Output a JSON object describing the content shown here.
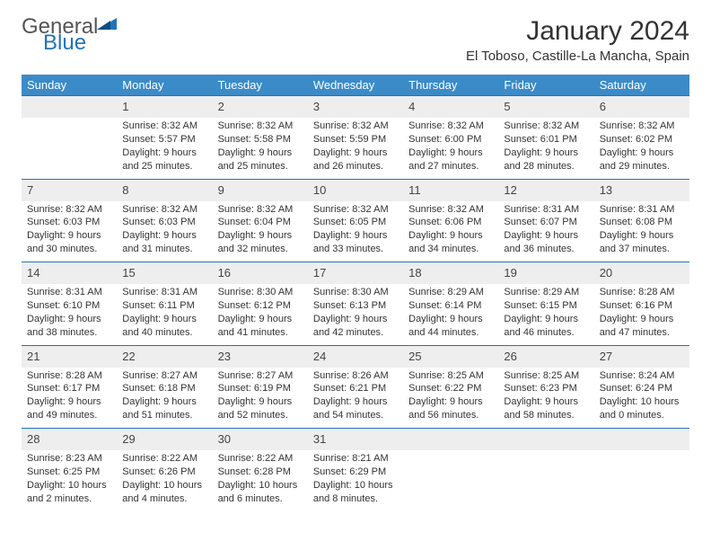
{
  "logo": {
    "general": "General",
    "blue": "Blue"
  },
  "title": "January 2024",
  "location": "El Toboso, Castille-La Mancha, Spain",
  "colors": {
    "header_bg": "#3b8bc8",
    "header_text": "#ffffff",
    "daynum_bg": "#eeeeee",
    "border": "#2074b8",
    "logo_gray": "#555555",
    "logo_blue": "#2074b8",
    "page_bg": "#ffffff",
    "text": "#333333"
  },
  "weekdays": [
    "Sunday",
    "Monday",
    "Tuesday",
    "Wednesday",
    "Thursday",
    "Friday",
    "Saturday"
  ],
  "weeks": [
    [
      {
        "n": "",
        "sr": "",
        "ss": "",
        "d1": "",
        "d2": ""
      },
      {
        "n": "1",
        "sr": "Sunrise: 8:32 AM",
        "ss": "Sunset: 5:57 PM",
        "d1": "Daylight: 9 hours",
        "d2": "and 25 minutes."
      },
      {
        "n": "2",
        "sr": "Sunrise: 8:32 AM",
        "ss": "Sunset: 5:58 PM",
        "d1": "Daylight: 9 hours",
        "d2": "and 25 minutes."
      },
      {
        "n": "3",
        "sr": "Sunrise: 8:32 AM",
        "ss": "Sunset: 5:59 PM",
        "d1": "Daylight: 9 hours",
        "d2": "and 26 minutes."
      },
      {
        "n": "4",
        "sr": "Sunrise: 8:32 AM",
        "ss": "Sunset: 6:00 PM",
        "d1": "Daylight: 9 hours",
        "d2": "and 27 minutes."
      },
      {
        "n": "5",
        "sr": "Sunrise: 8:32 AM",
        "ss": "Sunset: 6:01 PM",
        "d1": "Daylight: 9 hours",
        "d2": "and 28 minutes."
      },
      {
        "n": "6",
        "sr": "Sunrise: 8:32 AM",
        "ss": "Sunset: 6:02 PM",
        "d1": "Daylight: 9 hours",
        "d2": "and 29 minutes."
      }
    ],
    [
      {
        "n": "7",
        "sr": "Sunrise: 8:32 AM",
        "ss": "Sunset: 6:03 PM",
        "d1": "Daylight: 9 hours",
        "d2": "and 30 minutes."
      },
      {
        "n": "8",
        "sr": "Sunrise: 8:32 AM",
        "ss": "Sunset: 6:03 PM",
        "d1": "Daylight: 9 hours",
        "d2": "and 31 minutes."
      },
      {
        "n": "9",
        "sr": "Sunrise: 8:32 AM",
        "ss": "Sunset: 6:04 PM",
        "d1": "Daylight: 9 hours",
        "d2": "and 32 minutes."
      },
      {
        "n": "10",
        "sr": "Sunrise: 8:32 AM",
        "ss": "Sunset: 6:05 PM",
        "d1": "Daylight: 9 hours",
        "d2": "and 33 minutes."
      },
      {
        "n": "11",
        "sr": "Sunrise: 8:32 AM",
        "ss": "Sunset: 6:06 PM",
        "d1": "Daylight: 9 hours",
        "d2": "and 34 minutes."
      },
      {
        "n": "12",
        "sr": "Sunrise: 8:31 AM",
        "ss": "Sunset: 6:07 PM",
        "d1": "Daylight: 9 hours",
        "d2": "and 36 minutes."
      },
      {
        "n": "13",
        "sr": "Sunrise: 8:31 AM",
        "ss": "Sunset: 6:08 PM",
        "d1": "Daylight: 9 hours",
        "d2": "and 37 minutes."
      }
    ],
    [
      {
        "n": "14",
        "sr": "Sunrise: 8:31 AM",
        "ss": "Sunset: 6:10 PM",
        "d1": "Daylight: 9 hours",
        "d2": "and 38 minutes."
      },
      {
        "n": "15",
        "sr": "Sunrise: 8:31 AM",
        "ss": "Sunset: 6:11 PM",
        "d1": "Daylight: 9 hours",
        "d2": "and 40 minutes."
      },
      {
        "n": "16",
        "sr": "Sunrise: 8:30 AM",
        "ss": "Sunset: 6:12 PM",
        "d1": "Daylight: 9 hours",
        "d2": "and 41 minutes."
      },
      {
        "n": "17",
        "sr": "Sunrise: 8:30 AM",
        "ss": "Sunset: 6:13 PM",
        "d1": "Daylight: 9 hours",
        "d2": "and 42 minutes."
      },
      {
        "n": "18",
        "sr": "Sunrise: 8:29 AM",
        "ss": "Sunset: 6:14 PM",
        "d1": "Daylight: 9 hours",
        "d2": "and 44 minutes."
      },
      {
        "n": "19",
        "sr": "Sunrise: 8:29 AM",
        "ss": "Sunset: 6:15 PM",
        "d1": "Daylight: 9 hours",
        "d2": "and 46 minutes."
      },
      {
        "n": "20",
        "sr": "Sunrise: 8:28 AM",
        "ss": "Sunset: 6:16 PM",
        "d1": "Daylight: 9 hours",
        "d2": "and 47 minutes."
      }
    ],
    [
      {
        "n": "21",
        "sr": "Sunrise: 8:28 AM",
        "ss": "Sunset: 6:17 PM",
        "d1": "Daylight: 9 hours",
        "d2": "and 49 minutes."
      },
      {
        "n": "22",
        "sr": "Sunrise: 8:27 AM",
        "ss": "Sunset: 6:18 PM",
        "d1": "Daylight: 9 hours",
        "d2": "and 51 minutes."
      },
      {
        "n": "23",
        "sr": "Sunrise: 8:27 AM",
        "ss": "Sunset: 6:19 PM",
        "d1": "Daylight: 9 hours",
        "d2": "and 52 minutes."
      },
      {
        "n": "24",
        "sr": "Sunrise: 8:26 AM",
        "ss": "Sunset: 6:21 PM",
        "d1": "Daylight: 9 hours",
        "d2": "and 54 minutes."
      },
      {
        "n": "25",
        "sr": "Sunrise: 8:25 AM",
        "ss": "Sunset: 6:22 PM",
        "d1": "Daylight: 9 hours",
        "d2": "and 56 minutes."
      },
      {
        "n": "26",
        "sr": "Sunrise: 8:25 AM",
        "ss": "Sunset: 6:23 PM",
        "d1": "Daylight: 9 hours",
        "d2": "and 58 minutes."
      },
      {
        "n": "27",
        "sr": "Sunrise: 8:24 AM",
        "ss": "Sunset: 6:24 PM",
        "d1": "Daylight: 10 hours",
        "d2": "and 0 minutes."
      }
    ],
    [
      {
        "n": "28",
        "sr": "Sunrise: 8:23 AM",
        "ss": "Sunset: 6:25 PM",
        "d1": "Daylight: 10 hours",
        "d2": "and 2 minutes."
      },
      {
        "n": "29",
        "sr": "Sunrise: 8:22 AM",
        "ss": "Sunset: 6:26 PM",
        "d1": "Daylight: 10 hours",
        "d2": "and 4 minutes."
      },
      {
        "n": "30",
        "sr": "Sunrise: 8:22 AM",
        "ss": "Sunset: 6:28 PM",
        "d1": "Daylight: 10 hours",
        "d2": "and 6 minutes."
      },
      {
        "n": "31",
        "sr": "Sunrise: 8:21 AM",
        "ss": "Sunset: 6:29 PM",
        "d1": "Daylight: 10 hours",
        "d2": "and 8 minutes."
      },
      {
        "n": "",
        "sr": "",
        "ss": "",
        "d1": "",
        "d2": ""
      },
      {
        "n": "",
        "sr": "",
        "ss": "",
        "d1": "",
        "d2": ""
      },
      {
        "n": "",
        "sr": "",
        "ss": "",
        "d1": "",
        "d2": ""
      }
    ]
  ]
}
